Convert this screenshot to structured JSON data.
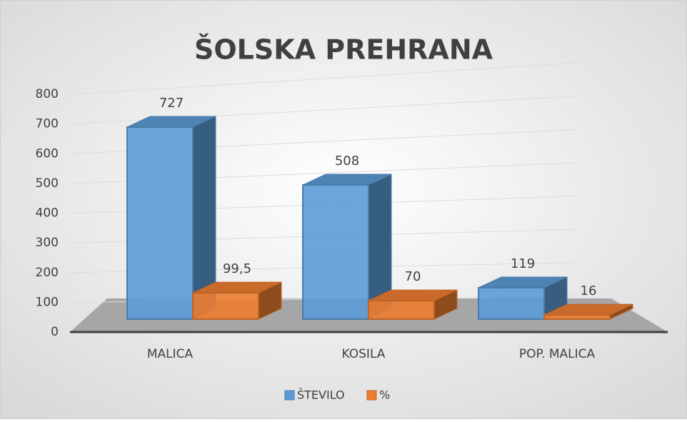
{
  "chart_data": {
    "type": "bar3d",
    "title": "ŠOLSKA PREHRANA",
    "categories": [
      "MALICA",
      "KOSILA",
      "POP. MALICA"
    ],
    "series": [
      {
        "name": "ŠTEVILO",
        "color": "#5b9bd5",
        "values": [
          727,
          508,
          119
        ]
      },
      {
        "name": "%",
        "color": "#ed7d31",
        "values": [
          99.5,
          70,
          16
        ],
        "value_labels": [
          "99,5",
          "70",
          "16"
        ]
      }
    ],
    "ylim": [
      0,
      800
    ],
    "yticks": [
      0,
      100,
      200,
      300,
      400,
      500,
      600,
      700,
      800
    ],
    "grid": true,
    "legend": "bottom"
  }
}
